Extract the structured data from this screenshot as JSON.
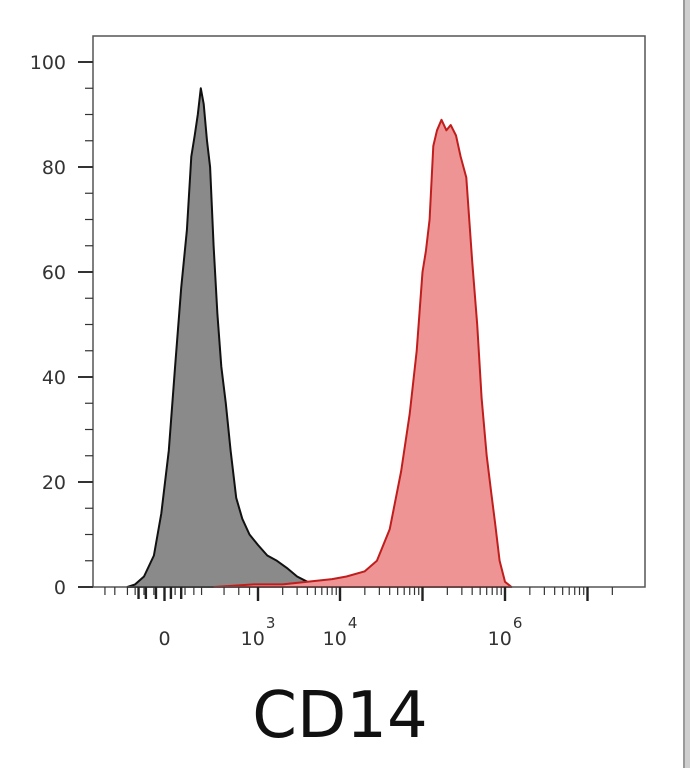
{
  "chart_data": {
    "type": "area",
    "title": "",
    "xlabel": "CD14",
    "ylabel": "",
    "x_scale": "biexponential",
    "ylim": [
      0,
      105
    ],
    "yticks": [
      0,
      20,
      40,
      60,
      80,
      100
    ],
    "xticks": [
      {
        "value": 0,
        "base": "0",
        "exp": ""
      },
      {
        "value": 1000,
        "base": "10",
        "exp": "3"
      },
      {
        "value": 10000,
        "base": "10",
        "exp": "4"
      },
      {
        "value": 1000000,
        "base": "10",
        "exp": "6"
      }
    ],
    "grid": false,
    "series": [
      {
        "color": "#111111",
        "fill": "#8a8a8a",
        "points": [
          [
            -200,
            0
          ],
          [
            -150,
            0.5
          ],
          [
            -100,
            2
          ],
          [
            -50,
            6
          ],
          [
            -15,
            14
          ],
          [
            20,
            26
          ],
          [
            50,
            42
          ],
          [
            80,
            57
          ],
          [
            110,
            68
          ],
          [
            135,
            82
          ],
          [
            155,
            86
          ],
          [
            175,
            90
          ],
          [
            195,
            95
          ],
          [
            215,
            92
          ],
          [
            240,
            85
          ],
          [
            265,
            80
          ],
          [
            295,
            65
          ],
          [
            330,
            52
          ],
          [
            370,
            42
          ],
          [
            420,
            35
          ],
          [
            480,
            26
          ],
          [
            560,
            17
          ],
          [
            660,
            13
          ],
          [
            800,
            10
          ],
          [
            1000,
            8
          ],
          [
            1300,
            6
          ],
          [
            1700,
            5
          ],
          [
            2300,
            3.5
          ],
          [
            3000,
            2
          ],
          [
            4000,
            1
          ],
          [
            5000,
            0.5
          ],
          [
            7000,
            0
          ]
        ]
      },
      {
        "color": "#c01d1d",
        "fill": "#ee9494",
        "points": [
          [
            300,
            0
          ],
          [
            900,
            0.5
          ],
          [
            2000,
            0.5
          ],
          [
            4000,
            1
          ],
          [
            8000,
            1.5
          ],
          [
            12000,
            2
          ],
          [
            20000,
            3
          ],
          [
            28000,
            5
          ],
          [
            40000,
            11
          ],
          [
            55000,
            22
          ],
          [
            70000,
            33
          ],
          [
            85000,
            45
          ],
          [
            100000,
            60
          ],
          [
            110000,
            64
          ],
          [
            122000,
            70
          ],
          [
            135000,
            84
          ],
          [
            150000,
            87
          ],
          [
            170000,
            89
          ],
          [
            195000,
            87
          ],
          [
            220000,
            88
          ],
          [
            255000,
            86
          ],
          [
            290000,
            82
          ],
          [
            340000,
            78
          ],
          [
            400000,
            62
          ],
          [
            460000,
            50
          ],
          [
            520000,
            36
          ],
          [
            600000,
            25
          ],
          [
            680000,
            18
          ],
          [
            760000,
            12
          ],
          [
            860000,
            5
          ],
          [
            1000000,
            1
          ],
          [
            1200000,
            0
          ]
        ]
      }
    ]
  }
}
